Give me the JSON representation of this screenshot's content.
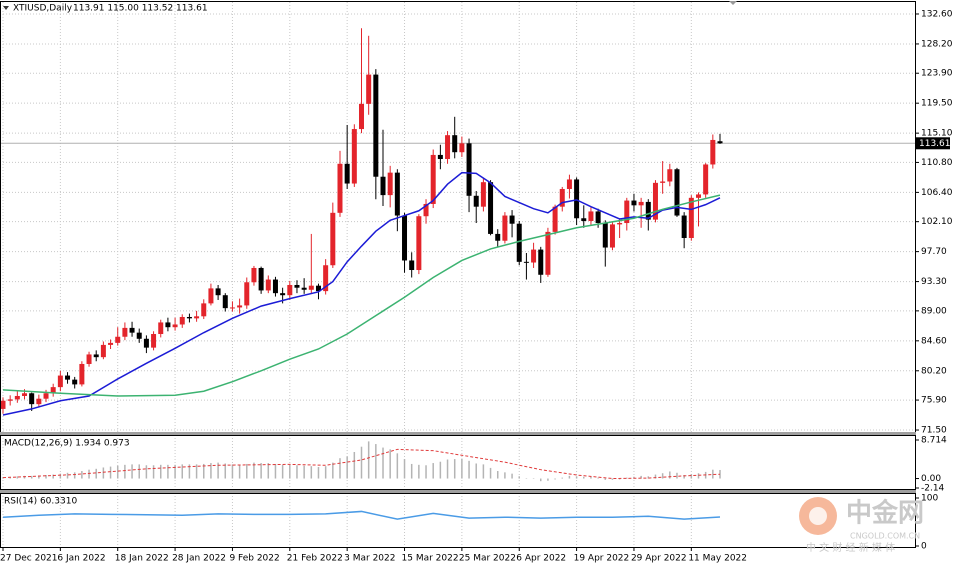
{
  "chart_data": [
    {
      "type": "candlestick",
      "title": "XTIUSD,Daily",
      "quote": "113.91 115.00 113.52 113.61",
      "up_color": "#e3242b",
      "down_color": "#000000",
      "grid": true,
      "ylim": [
        71.21,
        134.36
      ],
      "yticks": [
        {
          "value": 132.6,
          "label": "132.60"
        },
        {
          "value": 128.2,
          "label": "128.20"
        },
        {
          "value": 123.9,
          "label": "123.90"
        },
        {
          "value": 119.5,
          "label": "119.50"
        },
        {
          "value": 115.1,
          "label": "115.10"
        },
        {
          "value": 110.8,
          "label": "110.80"
        },
        {
          "value": 106.4,
          "label": "106.40"
        },
        {
          "value": 102.1,
          "label": "102.10"
        },
        {
          "value": 97.7,
          "label": "97.70"
        },
        {
          "value": 93.3,
          "label": "93.30"
        },
        {
          "value": 89,
          "label": "89.00"
        },
        {
          "value": 84.6,
          "label": "84.60"
        },
        {
          "value": 80.2,
          "label": "80.20"
        },
        {
          "value": 75.9,
          "label": "75.90"
        },
        {
          "value": 71.5,
          "label": "71.50"
        }
      ],
      "categories": [
        "27 Dec 2021",
        null,
        null,
        null,
        null,
        null,
        null,
        null,
        "6 Jan 2022",
        null,
        null,
        null,
        null,
        null,
        null,
        null,
        "18 Jan 2022",
        null,
        null,
        null,
        null,
        null,
        null,
        null,
        "28 Jan 2022",
        null,
        null,
        null,
        null,
        null,
        null,
        null,
        "9 Feb 2022",
        null,
        null,
        null,
        null,
        null,
        null,
        null,
        "21 Feb 2022",
        null,
        null,
        null,
        null,
        null,
        null,
        null,
        "3 Mar 2022",
        null,
        null,
        null,
        null,
        null,
        null,
        null,
        "15 Mar 2022",
        null,
        null,
        null,
        null,
        null,
        null,
        null,
        "25 Mar 2022",
        null,
        null,
        null,
        null,
        null,
        null,
        null,
        "6 Apr 2022",
        null,
        null,
        null,
        null,
        null,
        null,
        null,
        "19 Apr 2022",
        null,
        null,
        null,
        null,
        null,
        null,
        null,
        "29 Apr 2022",
        null,
        null,
        null,
        null,
        null,
        null,
        null,
        "11 May 2022",
        null,
        null,
        null,
        null
      ],
      "ohlc": [
        [
          74.6,
          76.3,
          73.9,
          75.8
        ],
        [
          75.8,
          76.6,
          75.1,
          76.0
        ],
        [
          76.0,
          77.2,
          75.5,
          76.5
        ],
        [
          76.5,
          77.5,
          76.0,
          76.9
        ],
        [
          76.9,
          77.0,
          74.3,
          75.3
        ],
        [
          75.3,
          76.7,
          74.8,
          76.1
        ],
        [
          76.1,
          77.4,
          75.6,
          76.9
        ],
        [
          76.9,
          78.3,
          76.4,
          77.8
        ],
        [
          77.8,
          80.2,
          77.2,
          79.5
        ],
        [
          79.5,
          80.0,
          78.3,
          78.9
        ],
        [
          78.9,
          79.3,
          77.6,
          78.2
        ],
        [
          78.2,
          81.6,
          77.9,
          81.2
        ],
        [
          81.2,
          83.0,
          80.8,
          82.6
        ],
        [
          82.6,
          83.2,
          81.6,
          82.2
        ],
        [
          82.2,
          84.5,
          81.9,
          84.0
        ],
        [
          84.0,
          84.8,
          83.4,
          84.3
        ],
        [
          84.3,
          86.6,
          83.9,
          85.2
        ],
        [
          85.2,
          87.3,
          84.7,
          86.5
        ],
        [
          86.5,
          87.4,
          85.2,
          85.8
        ],
        [
          85.8,
          86.4,
          84.3,
          84.9
        ],
        [
          84.9,
          85.4,
          82.8,
          83.6
        ],
        [
          83.6,
          86.0,
          83.2,
          85.6
        ],
        [
          85.6,
          87.7,
          85.1,
          87.3
        ],
        [
          87.3,
          88.0,
          86.0,
          86.6
        ],
        [
          86.6,
          88.0,
          86.1,
          87.0
        ],
        [
          87.0,
          88.5,
          86.5,
          88.1
        ],
        [
          88.1,
          88.6,
          87.3,
          87.9
        ],
        [
          87.9,
          89.0,
          87.4,
          88.2
        ],
        [
          88.2,
          90.7,
          87.8,
          90.1
        ],
        [
          90.1,
          93.0,
          89.8,
          92.3
        ],
        [
          92.3,
          92.8,
          90.6,
          91.3
        ],
        [
          91.3,
          91.6,
          88.9,
          89.4
        ],
        [
          89.4,
          90.4,
          88.9,
          89.5
        ],
        [
          89.5,
          90.8,
          88.6,
          89.8
        ],
        [
          89.8,
          93.9,
          89.3,
          93.2
        ],
        [
          93.2,
          95.6,
          92.7,
          95.3
        ],
        [
          95.3,
          95.5,
          91.5,
          92.0
        ],
        [
          92.0,
          94.2,
          91.6,
          93.6
        ],
        [
          93.6,
          94.0,
          91.1,
          91.6
        ],
        [
          91.6,
          92.4,
          90.1,
          91.3
        ],
        [
          91.3,
          93.4,
          90.6,
          92.8
        ],
        [
          92.8,
          93.5,
          91.6,
          92.4
        ],
        [
          92.4,
          93.8,
          91.5,
          92.1
        ],
        [
          92.1,
          100.3,
          91.6,
          92.7
        ],
        [
          92.7,
          93.0,
          90.7,
          91.9
        ],
        [
          91.9,
          96.6,
          91.4,
          95.7
        ],
        [
          95.7,
          104.9,
          95.3,
          103.4
        ],
        [
          103.4,
          112.5,
          102.8,
          110.6
        ],
        [
          110.6,
          116.3,
          106.9,
          107.7
        ],
        [
          107.7,
          116.4,
          107.2,
          115.7
        ],
        [
          115.7,
          130.5,
          115.1,
          119.4
        ],
        [
          119.4,
          129.4,
          117.8,
          123.7
        ],
        [
          123.7,
          124.5,
          105.4,
          108.7
        ],
        [
          108.7,
          115.6,
          104.4,
          106.0
        ],
        [
          106.0,
          110.3,
          104.2,
          109.3
        ],
        [
          109.3,
          109.8,
          100.7,
          103.0
        ],
        [
          103.0,
          103.4,
          94.6,
          96.4
        ],
        [
          96.4,
          97.6,
          93.9,
          95.0
        ],
        [
          95.0,
          103.2,
          94.4,
          102.9
        ],
        [
          102.9,
          105.4,
          101.8,
          104.7
        ],
        [
          104.7,
          112.7,
          104.1,
          111.9
        ],
        [
          111.9,
          113.4,
          109.8,
          111.3
        ],
        [
          111.3,
          115.4,
          110.6,
          114.8
        ],
        [
          114.8,
          117.5,
          111.4,
          112.3
        ],
        [
          112.3,
          114.6,
          111.6,
          113.6
        ],
        [
          113.6,
          114.3,
          103.5,
          105.9
        ],
        [
          105.9,
          106.6,
          101.9,
          104.3
        ],
        [
          104.3,
          108.5,
          103.6,
          107.9
        ],
        [
          107.9,
          108.2,
          100.1,
          100.3
        ],
        [
          100.3,
          101.0,
          98.4,
          99.3
        ],
        [
          99.3,
          103.5,
          98.9,
          103.0
        ],
        [
          103.0,
          103.8,
          99.8,
          101.8
        ],
        [
          101.8,
          102.2,
          95.7,
          96.2
        ],
        [
          96.2,
          97.5,
          93.6,
          96.1
        ],
        [
          96.1,
          99.0,
          95.3,
          98.0
        ],
        [
          98.0,
          98.4,
          93.1,
          94.3
        ],
        [
          94.3,
          101.2,
          94.0,
          100.6
        ],
        [
          100.6,
          104.6,
          100.2,
          104.3
        ],
        [
          104.3,
          107.2,
          103.6,
          106.9
        ],
        [
          106.9,
          109.0,
          105.5,
          108.3
        ],
        [
          108.3,
          108.6,
          101.6,
          102.6
        ],
        [
          102.6,
          104.5,
          101.2,
          102.2
        ],
        [
          102.2,
          104.2,
          101.6,
          103.6
        ],
        [
          103.6,
          104.0,
          101.2,
          101.9
        ],
        [
          101.9,
          102.3,
          95.5,
          98.3
        ],
        [
          98.3,
          102.0,
          97.9,
          101.7
        ],
        [
          101.7,
          102.6,
          99.7,
          101.9
        ],
        [
          101.9,
          105.6,
          100.8,
          105.2
        ],
        [
          105.2,
          106.2,
          103.6,
          104.5
        ],
        [
          104.5,
          105.6,
          101.2,
          105.0
        ],
        [
          105.0,
          105.4,
          100.8,
          102.4
        ],
        [
          102.4,
          108.2,
          102.0,
          107.8
        ],
        [
          107.8,
          111.0,
          106.2,
          108.0
        ],
        [
          108.0,
          110.6,
          107.3,
          109.8
        ],
        [
          109.8,
          110.0,
          102.8,
          103.0
        ],
        [
          103.0,
          103.5,
          98.2,
          99.7
        ],
        [
          99.7,
          106.0,
          99.3,
          105.6
        ],
        [
          105.6,
          106.4,
          101.4,
          106.1
        ],
        [
          106.1,
          110.7,
          105.6,
          110.5
        ],
        [
          110.5,
          114.9,
          109.9,
          114.1
        ],
        [
          113.91,
          115.0,
          113.52,
          113.61
        ]
      ],
      "series": [
        {
          "color": "#1c1cd6",
          "x": [
            0,
            4,
            8,
            12,
            16,
            20,
            24,
            28,
            32,
            36,
            40,
            44,
            46,
            48,
            50,
            52,
            54,
            56,
            58,
            60,
            62,
            64,
            66,
            68,
            70,
            72,
            74,
            76,
            78,
            80,
            82,
            84,
            86,
            88,
            90,
            92,
            94,
            96,
            98,
            100
          ],
          "values": [
            73.7,
            74.6,
            75.8,
            76.5,
            79.0,
            81.3,
            83.5,
            85.8,
            87.9,
            89.7,
            90.8,
            91.8,
            93.3,
            96.2,
            98.5,
            100.7,
            102.3,
            103.0,
            103.7,
            105.2,
            107.6,
            109.3,
            109.2,
            107.8,
            105.8,
            104.9,
            104.0,
            103.4,
            104.9,
            105.3,
            104.3,
            103.4,
            102.5,
            102.8,
            102.6,
            103.8,
            104.2,
            103.9,
            104.6,
            105.6
          ]
        },
        {
          "color": "#3cb371",
          "x": [
            0,
            8,
            16,
            24,
            28,
            32,
            36,
            40,
            44,
            48,
            52,
            56,
            60,
            64,
            68,
            72,
            76,
            80,
            84,
            88,
            92,
            96,
            100
          ],
          "values": [
            77.4,
            76.9,
            76.5,
            76.6,
            77.2,
            78.6,
            80.2,
            81.9,
            83.4,
            85.6,
            88.3,
            91.0,
            93.9,
            96.4,
            98.1,
            99.2,
            100.2,
            101.2,
            101.9,
            102.6,
            103.9,
            105.0,
            106.0
          ]
        }
      ]
    },
    {
      "type": "macd",
      "title": "MACD(12,26,9) 1.934 0.973",
      "color": "#b4b4b4",
      "ylim": [
        -2.14,
        8.714
      ],
      "yticks": [
        8.714,
        {
          "value": 0,
          "label": "0.00"
        },
        -2.14
      ],
      "values": [
        0.3,
        0.4,
        0.5,
        0.6,
        0.6,
        0.7,
        0.8,
        0.9,
        1.1,
        1.3,
        1.4,
        1.7,
        2.0,
        2.2,
        2.5,
        2.7,
        2.9,
        3.1,
        3.2,
        3.2,
        3.0,
        3.0,
        3.1,
        3.1,
        3.1,
        3.2,
        3.2,
        3.2,
        3.3,
        3.5,
        3.6,
        3.4,
        3.2,
        3.1,
        3.3,
        3.6,
        3.5,
        3.5,
        3.3,
        3.1,
        3.1,
        3.0,
        2.9,
        2.8,
        2.6,
        2.8,
        3.6,
        4.6,
        5.0,
        6.0,
        7.2,
        8.4,
        7.8,
        7.0,
        6.6,
        5.7,
        4.4,
        3.3,
        3.1,
        3.0,
        3.5,
        3.8,
        4.3,
        4.4,
        4.5,
        4.0,
        3.4,
        3.2,
        2.4,
        1.7,
        1.4,
        1.1,
        0.5,
        0.1,
        -0.1,
        -0.6,
        -0.5,
        -0.2,
        0.2,
        0.6,
        0.5,
        0.4,
        0.4,
        0.2,
        -0.3,
        -0.3,
        -0.2,
        0.2,
        0.4,
        0.6,
        0.5,
        0.9,
        1.2,
        1.6,
        1.3,
        0.8,
        1.0,
        1.2,
        1.5,
        2.0,
        1.934
      ],
      "signal": {
        "color": "#e03a3a",
        "x": [
          0,
          10,
          20,
          30,
          40,
          45,
          50,
          55,
          60,
          65,
          70,
          75,
          80,
          85,
          90,
          95,
          100
        ],
        "values": [
          0.2,
          0.9,
          2.2,
          3.0,
          3.2,
          3.0,
          4.2,
          6.6,
          6.3,
          5.0,
          3.7,
          2.0,
          0.8,
          0.0,
          0.1,
          0.6,
          0.973
        ]
      }
    },
    {
      "type": "line",
      "title": "RSI(14) 60.3310",
      "color": "#4a9be6",
      "ylim": [
        0,
        100
      ],
      "yticks": [
        100,
        0
      ],
      "x": [
        0,
        5,
        10,
        15,
        20,
        25,
        30,
        35,
        40,
        45,
        50,
        55,
        60,
        65,
        70,
        75,
        80,
        85,
        90,
        95,
        100
      ],
      "values": [
        60,
        64,
        67,
        66,
        65,
        64,
        67,
        66,
        66,
        67,
        72,
        56,
        68,
        58,
        60,
        58,
        60,
        60,
        62,
        56,
        60.331
      ]
    }
  ],
  "watermark": {
    "name": "中金网",
    "site": "CNGOLD.COM.CN",
    "slogan": "中 文 财 经 新 媒 体"
  }
}
